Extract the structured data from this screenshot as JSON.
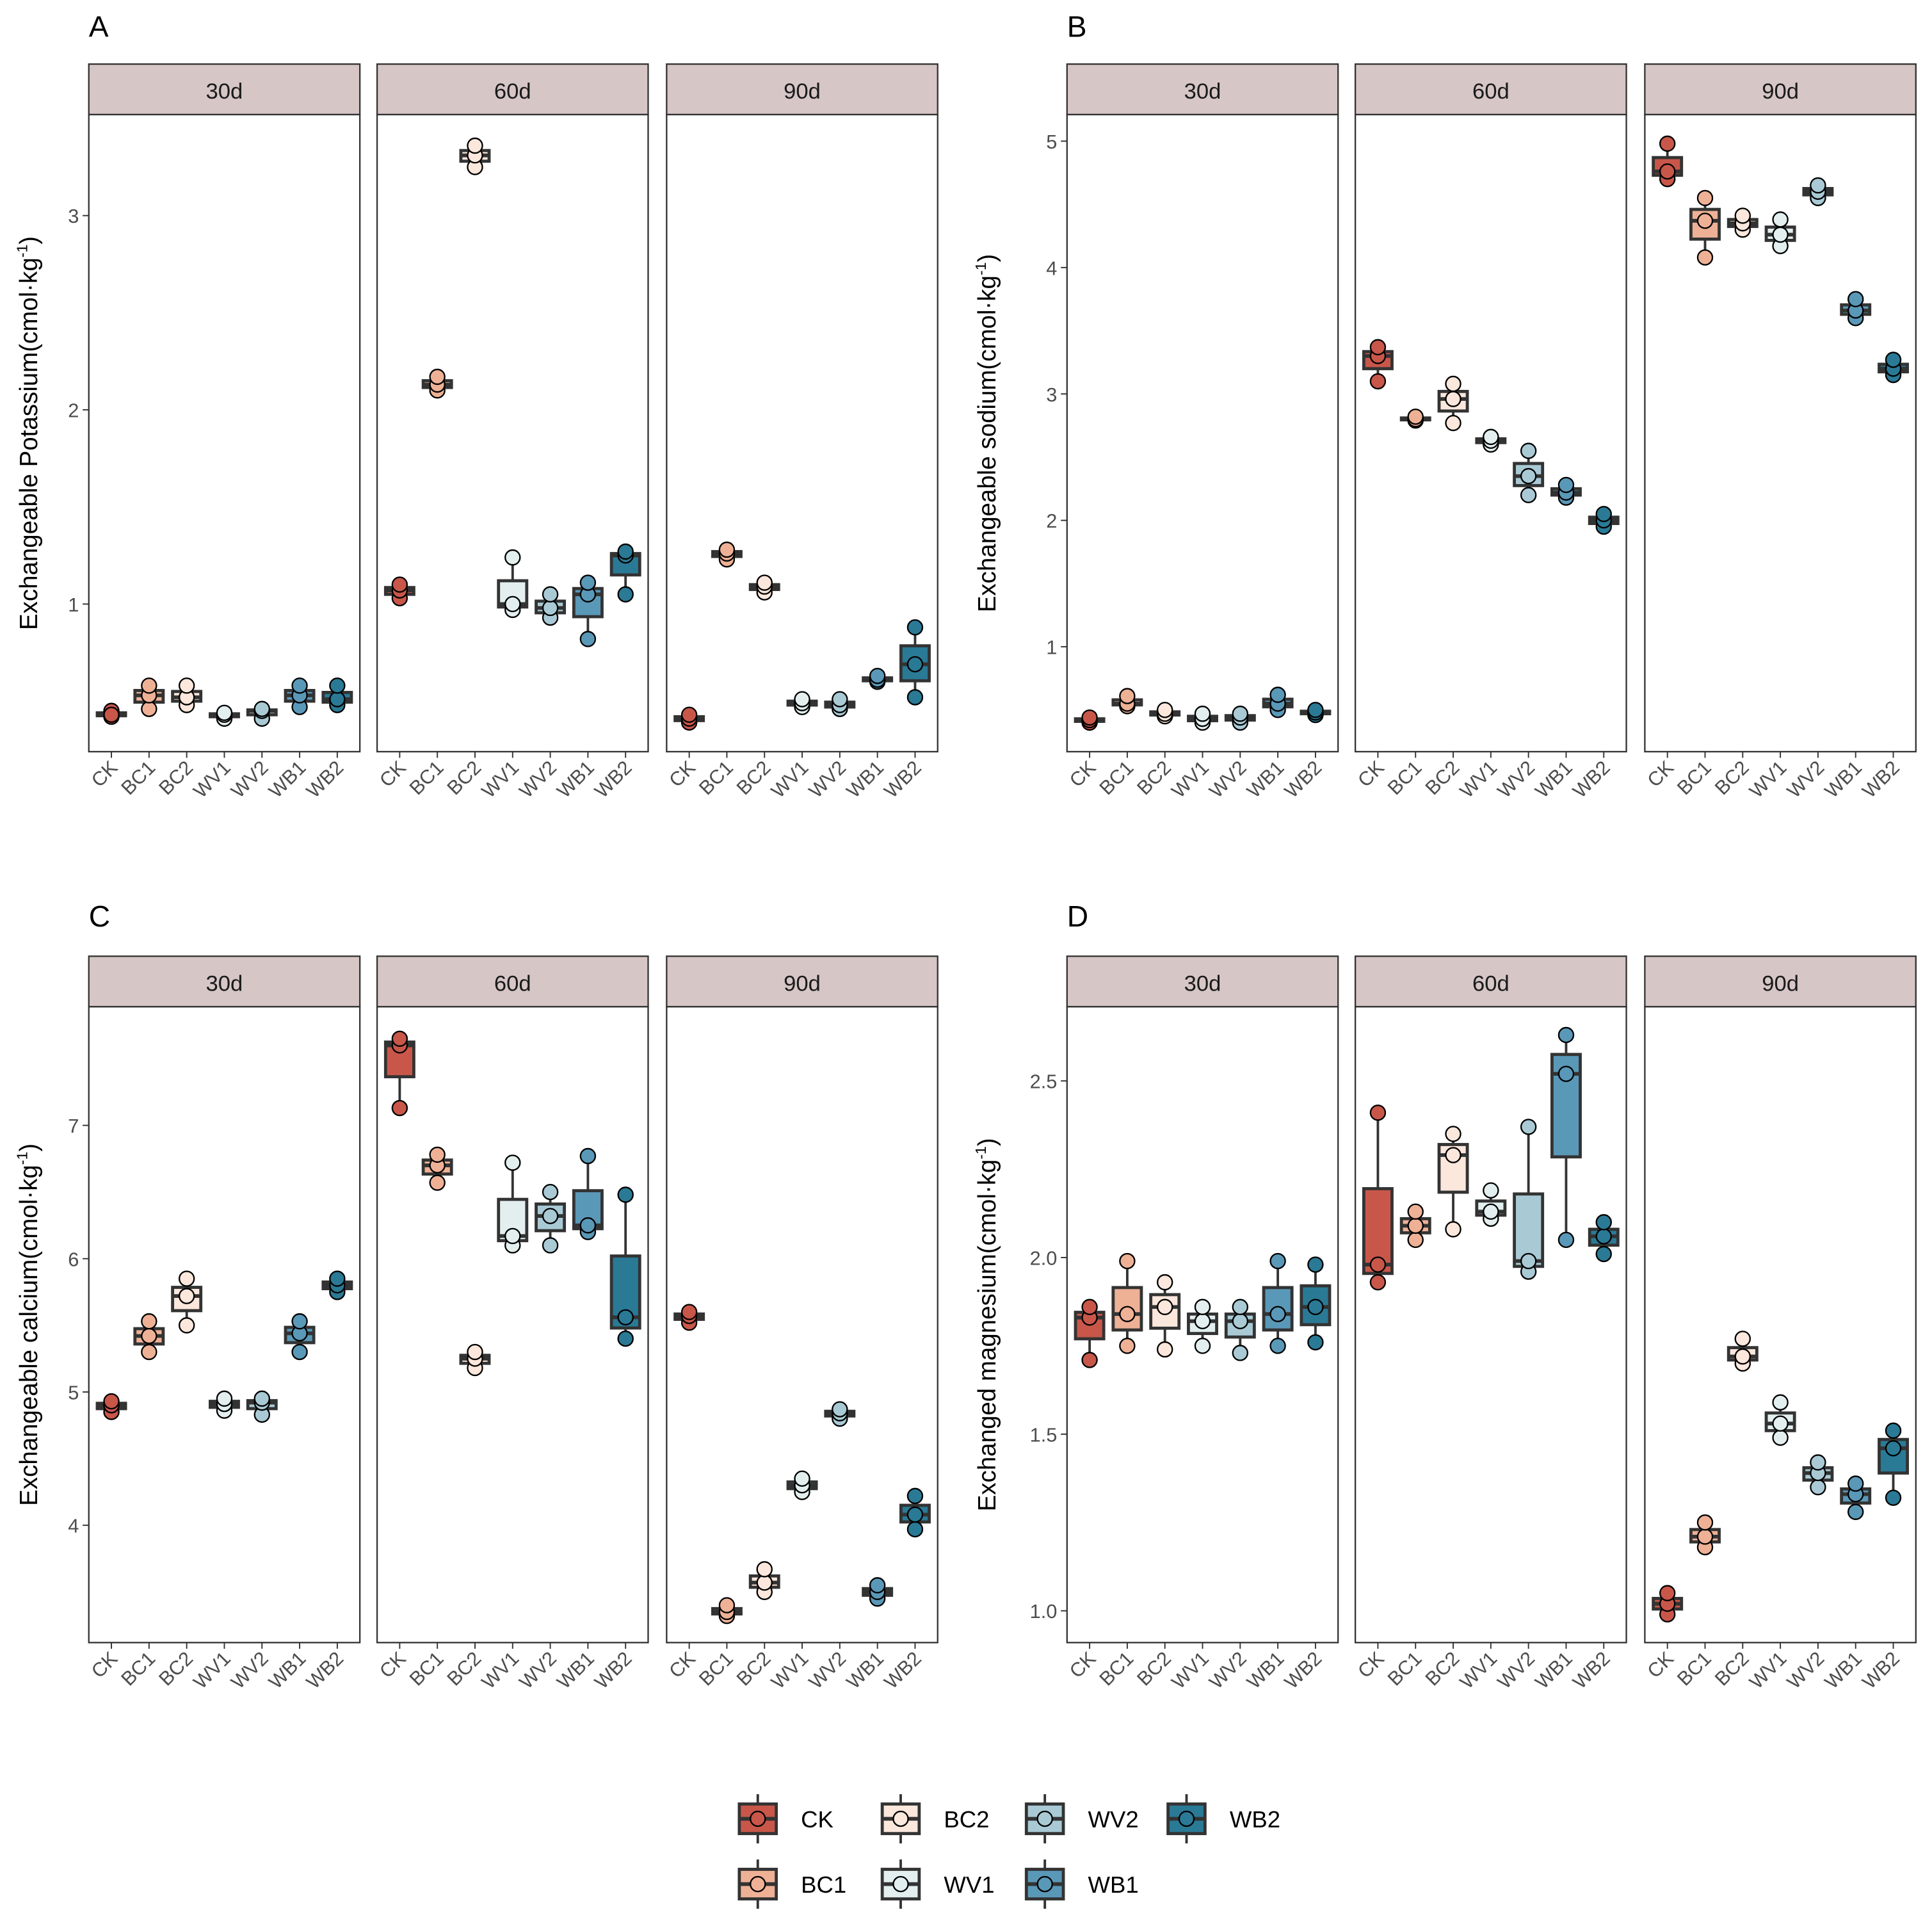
{
  "chart_data": {
    "type": "box",
    "groups": [
      "CK",
      "BC1",
      "BC2",
      "WV1",
      "WV2",
      "WB1",
      "WB2"
    ],
    "colors": {
      "CK": "#c8574a",
      "BC1": "#eeb196",
      "BC2": "#fbe7dc",
      "WV1": "#e3efef",
      "WV2": "#a9cad5",
      "WB1": "#5a98b8",
      "WB2": "#2a7a96"
    },
    "facets": [
      "30d",
      "60d",
      "90d"
    ],
    "legend": {
      "position": "bottom",
      "entries": [
        "CK",
        "BC2",
        "WV2",
        "WB2",
        "BC1",
        "WV1",
        "WB1"
      ]
    },
    "panels": [
      {
        "label": "A",
        "ylabel": "Exchangeable Potassium(cmol·kg",
        "ylabel_sup": "-1",
        "ylabel_end": ")",
        "ylim": [
          0.24,
          3.52
        ],
        "yticks": [
          1,
          2,
          3
        ],
        "yticklabels": [
          "1",
          "2",
          "3"
        ],
        "points": [
          [
            [
              0.42,
              0.45,
              0.43
            ],
            [
              0.46,
              0.53,
              0.58
            ],
            [
              0.48,
              0.52,
              0.58
            ],
            [
              0.41,
              0.43,
              0.44
            ],
            [
              0.41,
              0.45,
              0.46
            ],
            [
              0.47,
              0.53,
              0.58
            ],
            [
              0.48,
              0.51,
              0.58
            ]
          ],
          [
            [
              1.03,
              1.07,
              1.1
            ],
            [
              2.1,
              2.13,
              2.17
            ],
            [
              3.25,
              3.31,
              3.36
            ],
            [
              0.97,
              1.0,
              1.24
            ],
            [
              0.93,
              0.98,
              1.05
            ],
            [
              0.82,
              1.05,
              1.11
            ],
            [
              1.05,
              1.25,
              1.27
            ]
          ],
          [
            [
              0.39,
              0.41,
              0.43
            ],
            [
              1.23,
              1.26,
              1.28
            ],
            [
              1.06,
              1.09,
              1.11
            ],
            [
              0.47,
              0.49,
              0.51
            ],
            [
              0.46,
              0.48,
              0.51
            ],
            [
              0.6,
              0.61,
              0.63
            ],
            [
              0.52,
              0.69,
              0.88
            ]
          ]
        ]
      },
      {
        "label": "B",
        "ylabel": "Exchangeable sodium(cmol·kg",
        "ylabel_sup": "-1",
        "ylabel_end": ")",
        "ylim": [
          0.17,
          5.21
        ],
        "yticks": [
          1,
          2,
          3,
          4,
          5
        ],
        "yticklabels": [
          "1",
          "2",
          "3",
          "4",
          "5"
        ],
        "points": [
          [
            [
              0.4,
              0.42,
              0.44
            ],
            [
              0.53,
              0.55,
              0.61
            ],
            [
              0.45,
              0.47,
              0.5
            ],
            [
              0.4,
              0.43,
              0.47
            ],
            [
              0.4,
              0.44,
              0.47
            ],
            [
              0.5,
              0.55,
              0.62
            ],
            [
              0.46,
              0.48,
              0.5
            ]
          ],
          [
            [
              3.1,
              3.3,
              3.37
            ],
            [
              2.79,
              2.8,
              2.82
            ],
            [
              2.77,
              2.96,
              3.08
            ],
            [
              2.6,
              2.63,
              2.66
            ],
            [
              2.2,
              2.35,
              2.55
            ],
            [
              2.18,
              2.22,
              2.28
            ],
            [
              1.95,
              2.0,
              2.05
            ]
          ],
          [
            [
              4.7,
              4.76,
              4.98
            ],
            [
              4.08,
              4.37,
              4.55
            ],
            [
              4.3,
              4.35,
              4.41
            ],
            [
              4.17,
              4.26,
              4.38
            ],
            [
              4.55,
              4.6,
              4.65
            ],
            [
              3.6,
              3.66,
              3.75
            ],
            [
              3.15,
              3.2,
              3.27
            ]
          ]
        ]
      },
      {
        "label": "C",
        "ylabel": "Exchangeable calcium(cmol·kg",
        "ylabel_sup": "-1",
        "ylabel_end": ")",
        "ylim": [
          3.12,
          7.89
        ],
        "yticks": [
          4,
          5,
          6,
          7
        ],
        "yticklabels": [
          "4",
          "5",
          "6",
          "7"
        ],
        "points": [
          [
            [
              4.85,
              4.9,
              4.93
            ],
            [
              5.3,
              5.42,
              5.53
            ],
            [
              5.5,
              5.72,
              5.85
            ],
            [
              4.86,
              4.91,
              4.95
            ],
            [
              4.83,
              4.92,
              4.95
            ],
            [
              5.3,
              5.44,
              5.53
            ],
            [
              5.75,
              5.8,
              5.85
            ]
          ],
          [
            [
              7.13,
              7.6,
              7.65
            ],
            [
              6.57,
              6.7,
              6.78
            ],
            [
              5.18,
              5.25,
              5.3
            ],
            [
              6.1,
              6.17,
              6.72
            ],
            [
              6.1,
              6.32,
              6.5
            ],
            [
              6.2,
              6.25,
              6.77
            ],
            [
              5.4,
              5.56,
              6.48
            ]
          ],
          [
            [
              5.52,
              5.57,
              5.6
            ],
            [
              3.32,
              3.35,
              3.4
            ],
            [
              3.5,
              3.57,
              3.67
            ],
            [
              4.25,
              4.3,
              4.35
            ],
            [
              4.8,
              4.84,
              4.87
            ],
            [
              3.45,
              3.5,
              3.55
            ],
            [
              3.97,
              4.08,
              4.22
            ]
          ]
        ]
      },
      {
        "label": "D",
        "ylabel": "Exchanged magnesium(cmol·kg",
        "ylabel_sup": "-1",
        "ylabel_end": ")",
        "ylim": [
          0.91,
          2.71
        ],
        "yticks": [
          1,
          1.5,
          2,
          2.5
        ],
        "yticklabels": [
          "1.0",
          "1.5",
          "2.0",
          "2.5"
        ],
        "points": [
          [
            [
              1.71,
              1.83,
              1.86
            ],
            [
              1.75,
              1.84,
              1.99
            ],
            [
              1.74,
              1.86,
              1.93
            ],
            [
              1.75,
              1.82,
              1.86
            ],
            [
              1.73,
              1.82,
              1.86
            ],
            [
              1.75,
              1.84,
              1.99
            ],
            [
              1.76,
              1.86,
              1.98
            ]
          ],
          [
            [
              1.93,
              1.98,
              2.41
            ],
            [
              2.05,
              2.09,
              2.13
            ],
            [
              2.08,
              2.29,
              2.35
            ],
            [
              2.11,
              2.13,
              2.19
            ],
            [
              1.96,
              1.99,
              2.37
            ],
            [
              2.05,
              2.52,
              2.63
            ],
            [
              2.01,
              2.06,
              2.1
            ]
          ],
          [
            [
              0.99,
              1.02,
              1.05
            ],
            [
              1.18,
              1.21,
              1.25
            ],
            [
              1.7,
              1.72,
              1.77
            ],
            [
              1.49,
              1.53,
              1.59
            ],
            [
              1.35,
              1.39,
              1.42
            ],
            [
              1.28,
              1.33,
              1.36
            ],
            [
              1.32,
              1.46,
              1.51
            ]
          ]
        ]
      }
    ]
  }
}
